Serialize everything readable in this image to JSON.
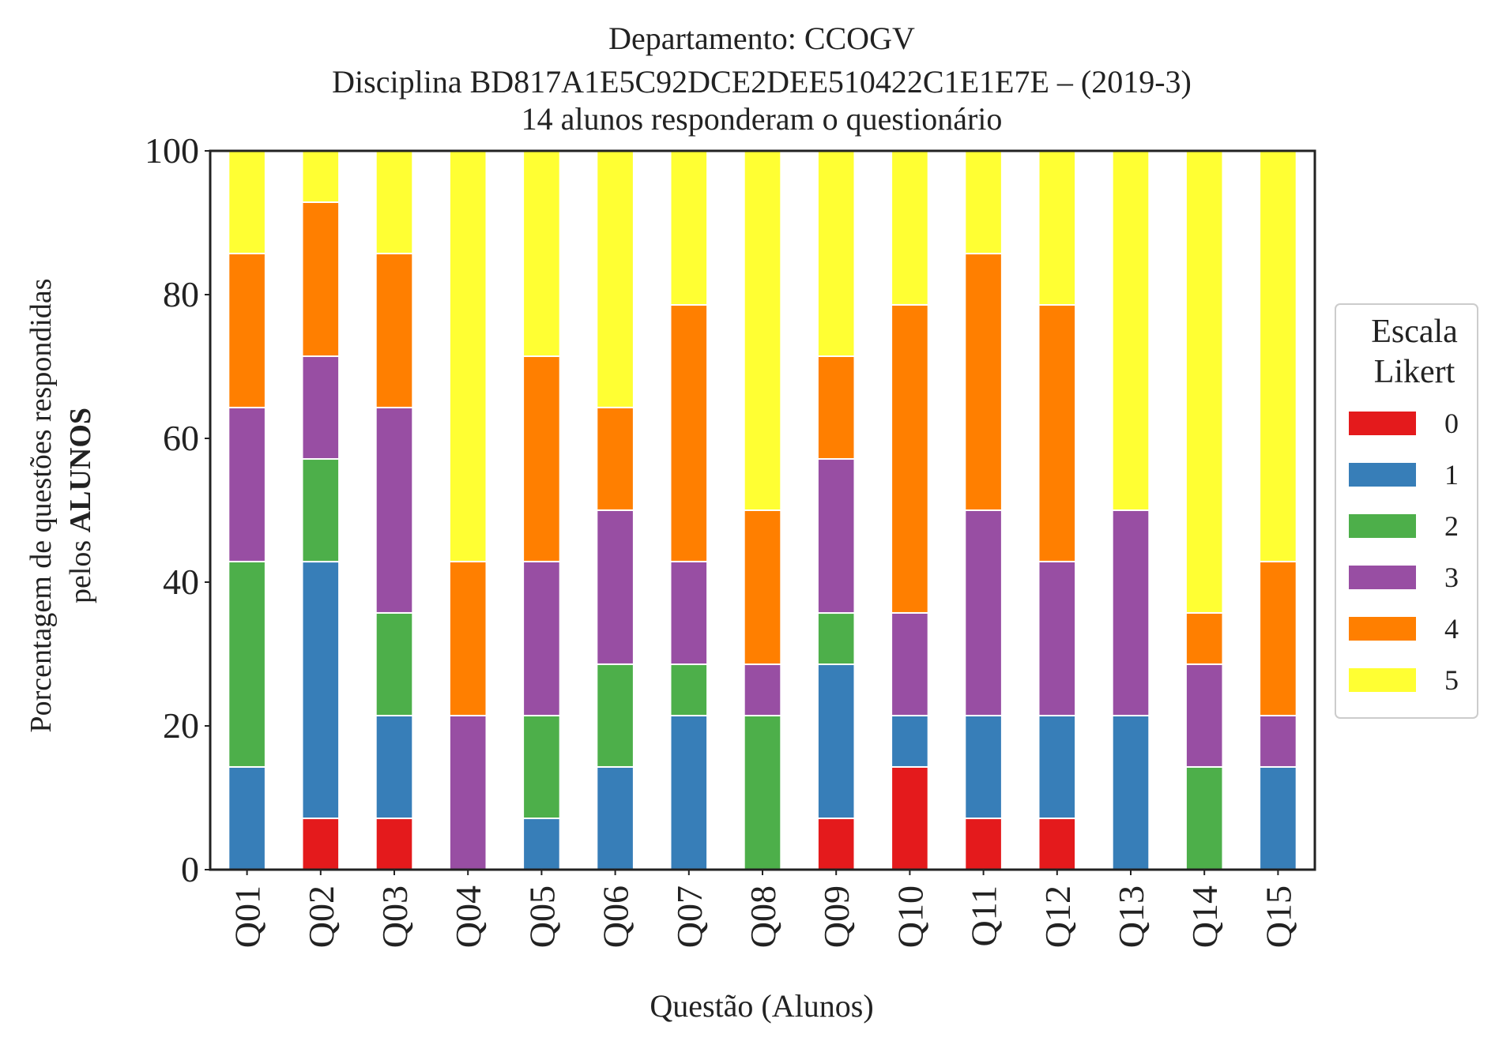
{
  "chart_data": {
    "type": "bar",
    "stacked": true,
    "title": [
      "Departamento: CCOGV",
      "Disciplina BD817A1E5C92DCE2DEE510422C1E1E7E – (2019-3)",
      "14 alunos responderam o questionário"
    ],
    "xlabel": "Questão (Alunos)",
    "ylabel_line1": "Porcentagem de questões respondidas",
    "ylabel_line2_prefix": "pelos ",
    "ylabel_line2_bold": "ALUNOS",
    "ylim": [
      0,
      100
    ],
    "yticks": [
      0,
      20,
      40,
      60,
      80,
      100
    ],
    "grid": false,
    "legend": {
      "title": [
        "Escala",
        "Likert"
      ],
      "position": "right"
    },
    "categories": [
      "Q01",
      "Q02",
      "Q03",
      "Q04",
      "Q05",
      "Q06",
      "Q07",
      "Q08",
      "Q09",
      "Q10",
      "Q11",
      "Q12",
      "Q13",
      "Q14",
      "Q15"
    ],
    "series": [
      {
        "name": "0",
        "color": "#e41a1c",
        "values": [
          0,
          7.14,
          7.14,
          0,
          0,
          0,
          0,
          0,
          7.14,
          14.29,
          7.14,
          7.14,
          0,
          0,
          0
        ]
      },
      {
        "name": "1",
        "color": "#377eb8",
        "values": [
          14.29,
          35.71,
          14.29,
          0,
          7.14,
          14.29,
          21.43,
          0,
          21.43,
          7.14,
          14.29,
          14.29,
          21.43,
          0,
          14.29
        ]
      },
      {
        "name": "2",
        "color": "#4daf4a",
        "values": [
          28.57,
          14.29,
          14.29,
          0,
          14.29,
          14.29,
          7.14,
          21.43,
          7.14,
          0,
          0,
          0,
          0,
          14.29,
          0
        ]
      },
      {
        "name": "3",
        "color": "#984ea3",
        "values": [
          21.43,
          14.29,
          28.57,
          21.43,
          21.43,
          21.43,
          14.29,
          7.14,
          21.43,
          14.29,
          28.57,
          21.43,
          28.57,
          14.29,
          7.14
        ]
      },
      {
        "name": "4",
        "color": "#ff7f00",
        "values": [
          21.43,
          21.43,
          21.43,
          21.43,
          28.57,
          14.29,
          35.71,
          21.43,
          14.29,
          42.86,
          35.71,
          35.71,
          0,
          7.14,
          21.43
        ]
      },
      {
        "name": "5",
        "color": "#ffff33",
        "values": [
          14.29,
          7.14,
          14.29,
          57.14,
          28.57,
          35.71,
          21.43,
          50,
          28.57,
          21.43,
          14.29,
          21.43,
          50,
          64.29,
          57.14
        ]
      }
    ]
  }
}
